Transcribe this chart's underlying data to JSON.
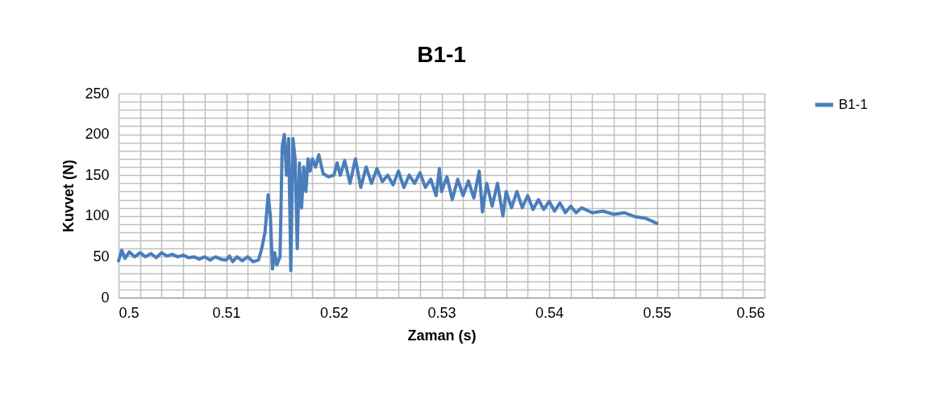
{
  "chart_data": {
    "type": "line",
    "title": "B1-1",
    "xlabel": "Zaman (s)",
    "ylabel": "Kuvvet (N)",
    "x": [
      0.5,
      0.5003,
      0.5006,
      0.501,
      0.5015,
      0.502,
      0.5025,
      0.503,
      0.5035,
      0.504,
      0.5045,
      0.505,
      0.5055,
      0.506,
      0.5065,
      0.507,
      0.5075,
      0.508,
      0.5085,
      0.509,
      0.5095,
      0.51,
      0.5103,
      0.5106,
      0.511,
      0.5115,
      0.512,
      0.5125,
      0.513,
      0.5133,
      0.5136,
      0.5139,
      0.5141,
      0.5143,
      0.5145,
      0.5147,
      0.515,
      0.5152,
      0.5154,
      0.5156,
      0.5158,
      0.516,
      0.5162,
      0.5164,
      0.5166,
      0.5168,
      0.517,
      0.5172,
      0.5174,
      0.5176,
      0.5178,
      0.518,
      0.5183,
      0.5186,
      0.519,
      0.5195,
      0.52,
      0.5203,
      0.5206,
      0.521,
      0.5215,
      0.522,
      0.5225,
      0.523,
      0.5235,
      0.524,
      0.5245,
      0.525,
      0.5255,
      0.526,
      0.5265,
      0.527,
      0.5275,
      0.528,
      0.5285,
      0.529,
      0.5295,
      0.5298,
      0.53,
      0.5305,
      0.531,
      0.5315,
      0.532,
      0.5325,
      0.533,
      0.5335,
      0.5338,
      0.5342,
      0.5347,
      0.5352,
      0.5357,
      0.536,
      0.5365,
      0.537,
      0.5375,
      0.538,
      0.5385,
      0.539,
      0.5395,
      0.54,
      0.5405,
      0.541,
      0.5415,
      0.542,
      0.5425,
      0.543,
      0.544,
      0.545,
      0.546,
      0.547,
      0.548,
      0.549,
      0.55
    ],
    "series": [
      {
        "name": "B1-1",
        "color": "#4a7ebb",
        "values": [
          45,
          58,
          48,
          56,
          50,
          55,
          50,
          54,
          49,
          55,
          51,
          53,
          50,
          52,
          49,
          50,
          47,
          50,
          46,
          50,
          47,
          46,
          51,
          44,
          50,
          45,
          50,
          44,
          46,
          60,
          80,
          126,
          100,
          35,
          55,
          40,
          50,
          185,
          200,
          150,
          195,
          33,
          195,
          170,
          60,
          165,
          110,
          160,
          130,
          170,
          155,
          170,
          160,
          175,
          152,
          148,
          150,
          165,
          150,
          168,
          140,
          170,
          135,
          160,
          140,
          158,
          142,
          150,
          138,
          155,
          135,
          150,
          140,
          153,
          135,
          145,
          125,
          158,
          130,
          148,
          120,
          145,
          125,
          143,
          122,
          155,
          105,
          140,
          112,
          140,
          100,
          130,
          110,
          130,
          110,
          125,
          108,
          120,
          108,
          118,
          106,
          116,
          104,
          112,
          104,
          110,
          104,
          106,
          102,
          104,
          99,
          97,
          91
        ]
      }
    ],
    "xlim": [
      0.5,
      0.56
    ],
    "ylim": [
      0,
      250
    ],
    "xticks": [
      0.5,
      {
        "value": 0.502,
        "label": null
      },
      {
        "value": 0.504,
        "label": null
      },
      {
        "value": 0.506,
        "label": null
      },
      {
        "value": 0.508,
        "label": null
      },
      0.51,
      {
        "value": 0.512,
        "label": null
      },
      {
        "value": 0.514,
        "label": null
      },
      {
        "value": 0.516,
        "label": null
      },
      {
        "value": 0.518,
        "label": null
      },
      0.52,
      {
        "value": 0.522,
        "label": null
      },
      {
        "value": 0.524,
        "label": null
      },
      {
        "value": 0.526,
        "label": null
      },
      {
        "value": 0.528,
        "label": null
      },
      0.53,
      {
        "value": 0.532,
        "label": null
      },
      {
        "value": 0.534,
        "label": null
      },
      {
        "value": 0.536,
        "label": null
      },
      {
        "value": 0.538,
        "label": null
      },
      0.54,
      {
        "value": 0.542,
        "label": null
      },
      {
        "value": 0.544,
        "label": null
      },
      {
        "value": 0.546,
        "label": null
      },
      {
        "value": 0.548,
        "label": null
      },
      0.55,
      {
        "value": 0.552,
        "label": null
      },
      {
        "value": 0.554,
        "label": null
      },
      {
        "value": 0.556,
        "label": null
      },
      {
        "value": 0.558,
        "label": null
      },
      0.56
    ],
    "yticks": [
      0,
      {
        "value": 10,
        "label": null
      },
      {
        "value": 20,
        "label": null
      },
      {
        "value": 30,
        "label": null
      },
      {
        "value": 40,
        "label": null
      },
      50,
      {
        "value": 60,
        "label": null
      },
      {
        "value": 70,
        "label": null
      },
      {
        "value": 80,
        "label": null
      },
      {
        "value": 90,
        "label": null
      },
      100,
      {
        "value": 110,
        "label": null
      },
      {
        "value": 120,
        "label": null
      },
      {
        "value": 130,
        "label": null
      },
      {
        "value": 140,
        "label": null
      },
      150,
      {
        "value": 160,
        "label": null
      },
      {
        "value": 170,
        "label": null
      },
      {
        "value": 180,
        "label": null
      },
      {
        "value": 190,
        "label": null
      },
      200,
      {
        "value": 210,
        "label": null
      },
      {
        "value": 220,
        "label": null
      },
      {
        "value": 230,
        "label": null
      },
      {
        "value": 240,
        "label": null
      },
      250
    ],
    "grid": true,
    "legend": "right",
    "marker": "none",
    "line_style": "solid"
  }
}
